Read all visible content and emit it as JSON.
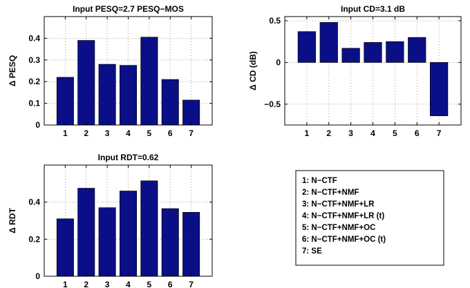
{
  "colors": {
    "bar": "#0a0f88",
    "bar_edge": "#000000",
    "grid": "#888888"
  },
  "legend": {
    "entries": [
      "1: N−CTF",
      "2: N−CTF+NMF",
      "3: N−CTF+NMF+LR",
      "4: N−CTF+NMF+LR (t)",
      "5: N−CTF+NMF+OC",
      "6: N−CTF+NMF+OC (t)",
      "7: SE"
    ]
  },
  "chart_data": [
    {
      "type": "bar",
      "title": "Input PESQ=2.7 PESQ−MOS",
      "xlabel": "",
      "ylabel": "Δ PESQ",
      "categories": [
        "1",
        "2",
        "3",
        "4",
        "5",
        "6",
        "7"
      ],
      "values": [
        0.22,
        0.39,
        0.28,
        0.275,
        0.405,
        0.21,
        0.115
      ],
      "ylim": [
        0,
        0.5
      ],
      "yticks": [
        0,
        0.1,
        0.2,
        0.3,
        0.4
      ],
      "ytick_labels": [
        "0",
        "0.1",
        "0.2",
        "0.3",
        "0.4"
      ],
      "grid": true
    },
    {
      "type": "bar",
      "title": "Input CD=3.1 dB",
      "xlabel": "",
      "ylabel": "Δ CD (dB)",
      "categories": [
        "1",
        "2",
        "3",
        "4",
        "5",
        "6",
        "7"
      ],
      "values": [
        0.37,
        0.48,
        0.17,
        0.24,
        0.25,
        0.3,
        -0.64
      ],
      "ylim": [
        -0.75,
        0.55
      ],
      "yticks": [
        -0.5,
        0,
        0.5
      ],
      "ytick_labels": [
        "−0.5",
        "0",
        "0.5"
      ],
      "grid": true
    },
    {
      "type": "bar",
      "title": "Input RDT=0.62",
      "xlabel": "",
      "ylabel": "Δ RDT",
      "categories": [
        "1",
        "2",
        "3",
        "4",
        "5",
        "6",
        "7"
      ],
      "values": [
        0.31,
        0.475,
        0.37,
        0.46,
        0.515,
        0.365,
        0.345
      ],
      "ylim": [
        0,
        0.6
      ],
      "yticks": [
        0,
        0.2,
        0.4
      ],
      "ytick_labels": [
        "0",
        "0.2",
        "0.4"
      ],
      "grid": true
    }
  ]
}
